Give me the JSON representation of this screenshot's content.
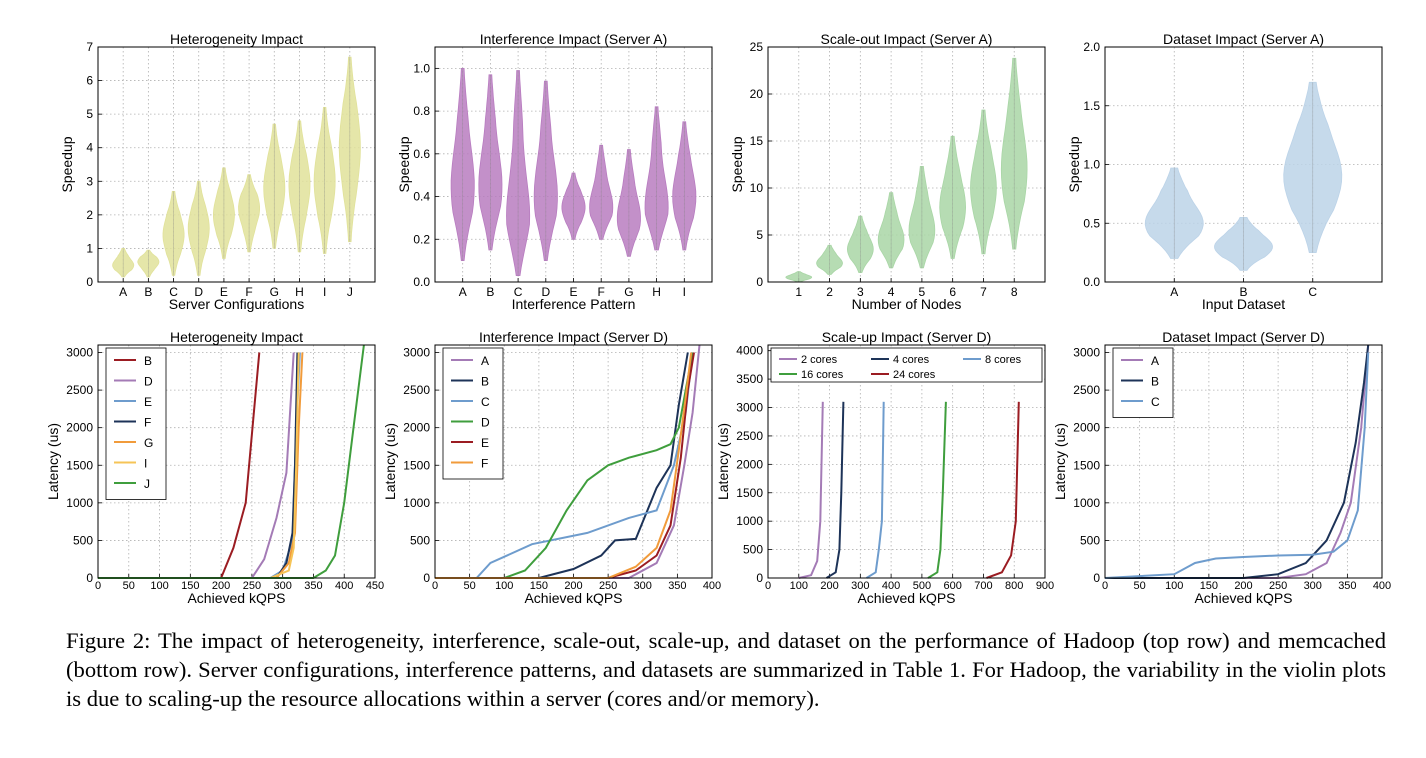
{
  "caption": "Figure 2:  The impact of heterogeneity, interference, scale-out, scale-up, and dataset on the performance of Hadoop (top row) and memcached (bottom row). Server configurations, interference patterns, and datasets are summarized in Table  1. For Hadoop, the variability in the violin plots is due to scaling-up the resource allocations within a server (cores and/or memory).",
  "colors": {
    "yellow": "#e1e29a",
    "purple": "#b87cc0",
    "green": "#a9d6a6",
    "blue": "#bcd3e8"
  },
  "chart_data": [
    {
      "type": "violin",
      "title": "Heterogeneity Impact",
      "xlabel": "Server Configurations",
      "ylabel": "Speedup",
      "ylim": [
        0,
        7
      ],
      "yticks": [
        "0",
        "1",
        "2",
        "3",
        "4",
        "5",
        "6",
        "7"
      ],
      "color": "#e1e29a",
      "categories": [
        "A",
        "B",
        "C",
        "D",
        "E",
        "F",
        "G",
        "H",
        "I",
        "J"
      ],
      "min": [
        0.15,
        0.15,
        0.2,
        0.2,
        0.7,
        0.9,
        1.0,
        0.9,
        0.85,
        1.2
      ],
      "max": [
        1.0,
        0.95,
        2.7,
        3.0,
        3.4,
        3.2,
        4.7,
        4.8,
        5.2,
        6.7
      ],
      "median": [
        0.5,
        0.6,
        1.4,
        1.6,
        2.0,
        2.2,
        2.8,
        2.9,
        3.0,
        4.0
      ],
      "grid": true
    },
    {
      "type": "violin",
      "title": "Interference Impact (Server A)",
      "xlabel": "Interference Pattern",
      "ylabel": "Speedup",
      "ylim": [
        0,
        1.1
      ],
      "yticks": [
        "0.0",
        "0.2",
        "0.4",
        "0.6",
        "0.8",
        "1.0"
      ],
      "color": "#b87cc0",
      "categories": [
        "A",
        "B",
        "C",
        "D",
        "E",
        "F",
        "G",
        "H",
        "I"
      ],
      "min": [
        0.1,
        0.15,
        0.03,
        0.1,
        0.2,
        0.2,
        0.12,
        0.15,
        0.15
      ],
      "max": [
        1.0,
        0.97,
        0.99,
        0.94,
        0.51,
        0.64,
        0.62,
        0.82,
        0.75
      ],
      "median": [
        0.45,
        0.45,
        0.3,
        0.4,
        0.35,
        0.35,
        0.3,
        0.35,
        0.4
      ],
      "grid": true
    },
    {
      "type": "violin",
      "title": "Scale-out Impact (Server A)",
      "xlabel": "Number of Nodes",
      "ylabel": "Speedup",
      "ylim": [
        0,
        25
      ],
      "yticks": [
        "0",
        "5",
        "10",
        "15",
        "20",
        "25"
      ],
      "color": "#a9d6a6",
      "categories": [
        "1",
        "2",
        "3",
        "4",
        "5",
        "6",
        "7",
        "8"
      ],
      "min": [
        0.0,
        0.8,
        1.0,
        1.5,
        1.5,
        2.5,
        3.0,
        3.5
      ],
      "max": [
        1.1,
        3.9,
        7.0,
        9.5,
        12.3,
        15.5,
        18.3,
        23.8
      ],
      "median": [
        0.5,
        2.0,
        3.5,
        4.5,
        5.5,
        8.0,
        10.0,
        12.0
      ],
      "grid": true
    },
    {
      "type": "violin",
      "title": "Dataset Impact (Server A)",
      "xlabel": "Input Dataset",
      "ylabel": "Speedup",
      "ylim": [
        0,
        2.0
      ],
      "yticks": [
        "0.0",
        "0.5",
        "1.0",
        "1.5",
        "2.0"
      ],
      "color": "#bcd3e8",
      "categories": [
        "A",
        "B",
        "C"
      ],
      "min": [
        0.2,
        0.1,
        0.25
      ],
      "max": [
        0.97,
        0.55,
        1.7
      ],
      "median": [
        0.5,
        0.3,
        0.9
      ],
      "grid": true
    },
    {
      "type": "line",
      "title": "Heterogeneity Impact",
      "xlabel": "Achieved kQPS",
      "ylabel": "Latency (us)",
      "xlim": [
        0,
        450
      ],
      "ylim": [
        0,
        3100
      ],
      "xticks": [
        "0",
        "50",
        "100",
        "150",
        "200",
        "250",
        "300",
        "350",
        "400",
        "450"
      ],
      "yticks": [
        "0",
        "500",
        "1000",
        "1500",
        "2000",
        "2500",
        "3000"
      ],
      "legend_position": "upper left",
      "grid": true,
      "series": [
        {
          "name": "B",
          "color": "#9b1c22",
          "points": [
            [
              0,
              0
            ],
            [
              200,
              0
            ],
            [
              220,
              400
            ],
            [
              240,
              1000
            ],
            [
              262,
              3000
            ]
          ]
        },
        {
          "name": "D",
          "color": "#a47bb6",
          "points": [
            [
              0,
              0
            ],
            [
              250,
              0
            ],
            [
              270,
              250
            ],
            [
              290,
              800
            ],
            [
              306,
              1400
            ],
            [
              318,
              3000
            ]
          ]
        },
        {
          "name": "E",
          "color": "#6e9ccd",
          "points": [
            [
              0,
              0
            ],
            [
              280,
              0
            ],
            [
              300,
              100
            ],
            [
              316,
              500
            ],
            [
              322,
              2000
            ],
            [
              328,
              3000
            ]
          ]
        },
        {
          "name": "F",
          "color": "#1d3358",
          "points": [
            [
              0,
              0
            ],
            [
              290,
              0
            ],
            [
              306,
              200
            ],
            [
              316,
              600
            ],
            [
              320,
              1500
            ],
            [
              324,
              3000
            ]
          ]
        },
        {
          "name": "G",
          "color": "#f19b3b",
          "points": [
            [
              0,
              0
            ],
            [
              290,
              0
            ],
            [
              310,
              200
            ],
            [
              320,
              600
            ],
            [
              326,
              2000
            ],
            [
              332,
              3000
            ]
          ]
        },
        {
          "name": "I",
          "color": "#f6c457",
          "points": [
            [
              0,
              0
            ],
            [
              280,
              0
            ],
            [
              310,
              100
            ],
            [
              318,
              400
            ],
            [
              322,
              1500
            ],
            [
              326,
              3000
            ]
          ]
        },
        {
          "name": "J",
          "color": "#3f9e3d",
          "points": [
            [
              0,
              0
            ],
            [
              350,
              0
            ],
            [
              370,
              100
            ],
            [
              385,
              300
            ],
            [
              400,
              1000
            ],
            [
              415,
              2000
            ],
            [
              432,
              3100
            ]
          ]
        }
      ]
    },
    {
      "type": "line",
      "title": "Interference Impact (Server D)",
      "xlabel": "Achieved kQPS",
      "ylabel": "Latency (us)",
      "xlim": [
        0,
        400
      ],
      "ylim": [
        0,
        3100
      ],
      "xticks": [
        "0",
        "50",
        "100",
        "150",
        "200",
        "250",
        "300",
        "350",
        "400"
      ],
      "yticks": [
        "0",
        "500",
        "1000",
        "1500",
        "2000",
        "2500",
        "3000"
      ],
      "legend_position": "upper left",
      "grid": true,
      "series": [
        {
          "name": "A",
          "color": "#a47bb6",
          "points": [
            [
              0,
              0
            ],
            [
              280,
              0
            ],
            [
              320,
              200
            ],
            [
              345,
              700
            ],
            [
              360,
              1500
            ],
            [
              372,
              2200
            ],
            [
              382,
              3100
            ]
          ]
        },
        {
          "name": "B",
          "color": "#1d3358",
          "points": [
            [
              0,
              0
            ],
            [
              150,
              0
            ],
            [
              200,
              120
            ],
            [
              240,
              300
            ],
            [
              260,
              500
            ],
            [
              290,
              520
            ],
            [
              320,
              1200
            ],
            [
              340,
              1500
            ],
            [
              352,
              2300
            ],
            [
              365,
              3000
            ]
          ]
        },
        {
          "name": "C",
          "color": "#6e9ccd",
          "points": [
            [
              0,
              0
            ],
            [
              60,
              0
            ],
            [
              80,
              200
            ],
            [
              140,
              450
            ],
            [
              220,
              600
            ],
            [
              280,
              800
            ],
            [
              320,
              900
            ],
            [
              345,
              1500
            ],
            [
              362,
              2200
            ],
            [
              372,
              3000
            ]
          ]
        },
        {
          "name": "D",
          "color": "#3f9e3d",
          "points": [
            [
              0,
              0
            ],
            [
              100,
              0
            ],
            [
              130,
              100
            ],
            [
              160,
              400
            ],
            [
              190,
              900
            ],
            [
              220,
              1300
            ],
            [
              250,
              1500
            ],
            [
              280,
              1600
            ],
            [
              320,
              1700
            ],
            [
              340,
              1780
            ],
            [
              352,
              2000
            ],
            [
              362,
              2500
            ],
            [
              372,
              3000
            ]
          ]
        },
        {
          "name": "E",
          "color": "#9b1c22",
          "points": [
            [
              0,
              0
            ],
            [
              250,
              0
            ],
            [
              290,
              100
            ],
            [
              320,
              300
            ],
            [
              340,
              700
            ],
            [
              355,
              1600
            ],
            [
              365,
              2500
            ],
            [
              374,
              3000
            ]
          ]
        },
        {
          "name": "F",
          "color": "#f19b3b",
          "points": [
            [
              0,
              0
            ],
            [
              250,
              0
            ],
            [
              290,
              150
            ],
            [
              320,
              400
            ],
            [
              340,
              900
            ],
            [
              352,
              1700
            ],
            [
              362,
              2400
            ],
            [
              370,
              3000
            ]
          ]
        }
      ]
    },
    {
      "type": "line",
      "title": "Scale-up Impact (Server D)",
      "xlabel": "Achieved kQPS",
      "ylabel": "Latency (us)",
      "xlim": [
        0,
        900
      ],
      "ylim": [
        0,
        4100
      ],
      "xticks": [
        "0",
        "100",
        "200",
        "300",
        "400",
        "500",
        "600",
        "700",
        "800",
        "900"
      ],
      "yticks": [
        "0",
        "500",
        "1000",
        "1500",
        "2000",
        "2500",
        "3000",
        "3500",
        "4000"
      ],
      "legend_position": "top",
      "grid": true,
      "series": [
        {
          "name": "2 cores",
          "color": "#a47bb6",
          "points": [
            [
              100,
              0
            ],
            [
              140,
              50
            ],
            [
              160,
              300
            ],
            [
              170,
              1000
            ],
            [
              178,
              3100
            ]
          ]
        },
        {
          "name": "4 cores",
          "color": "#1d3358",
          "points": [
            [
              190,
              0
            ],
            [
              220,
              100
            ],
            [
              232,
              500
            ],
            [
              238,
              1500
            ],
            [
              245,
              3100
            ]
          ]
        },
        {
          "name": "8 cores",
          "color": "#6e9ccd",
          "points": [
            [
              320,
              0
            ],
            [
              350,
              100
            ],
            [
              360,
              500
            ],
            [
              370,
              1000
            ],
            [
              376,
              3100
            ]
          ]
        },
        {
          "name": "16 cores",
          "color": "#3f9e3d",
          "points": [
            [
              520,
              0
            ],
            [
              550,
              100
            ],
            [
              560,
              500
            ],
            [
              568,
              1500
            ],
            [
              578,
              3100
            ]
          ]
        },
        {
          "name": "24 cores",
          "color": "#9b1c22",
          "points": [
            [
              710,
              0
            ],
            [
              760,
              100
            ],
            [
              790,
              400
            ],
            [
              805,
              1000
            ],
            [
              815,
              3100
            ]
          ]
        }
      ]
    },
    {
      "type": "line",
      "title": "Dataset Impact (Server D)",
      "xlabel": "Achieved kQPS",
      "ylabel": "Latency (us)",
      "xlim": [
        0,
        400
      ],
      "ylim": [
        0,
        3100
      ],
      "xticks": [
        "0",
        "50",
        "100",
        "150",
        "200",
        "250",
        "300",
        "350",
        "400"
      ],
      "yticks": [
        "0",
        "500",
        "1000",
        "1500",
        "2000",
        "2500",
        "3000"
      ],
      "legend_position": "upper left",
      "grid": true,
      "series": [
        {
          "name": "A",
          "color": "#a47bb6",
          "points": [
            [
              0,
              0
            ],
            [
              250,
              0
            ],
            [
              290,
              50
            ],
            [
              320,
              200
            ],
            [
              340,
              600
            ],
            [
              355,
              1000
            ],
            [
              370,
              2000
            ],
            [
              380,
              3100
            ]
          ]
        },
        {
          "name": "B",
          "color": "#1d3358",
          "points": [
            [
              0,
              0
            ],
            [
              200,
              0
            ],
            [
              250,
              50
            ],
            [
              290,
              200
            ],
            [
              320,
              500
            ],
            [
              345,
              1000
            ],
            [
              362,
              1800
            ],
            [
              374,
              2600
            ],
            [
              380,
              3100
            ]
          ]
        },
        {
          "name": "C",
          "color": "#6e9ccd",
          "points": [
            [
              0,
              0
            ],
            [
              100,
              50
            ],
            [
              130,
              200
            ],
            [
              160,
              260
            ],
            [
              200,
              280
            ],
            [
              250,
              300
            ],
            [
              300,
              310
            ],
            [
              330,
              350
            ],
            [
              350,
              500
            ],
            [
              365,
              900
            ],
            [
              375,
              2000
            ],
            [
              380,
              3000
            ]
          ]
        }
      ]
    }
  ]
}
